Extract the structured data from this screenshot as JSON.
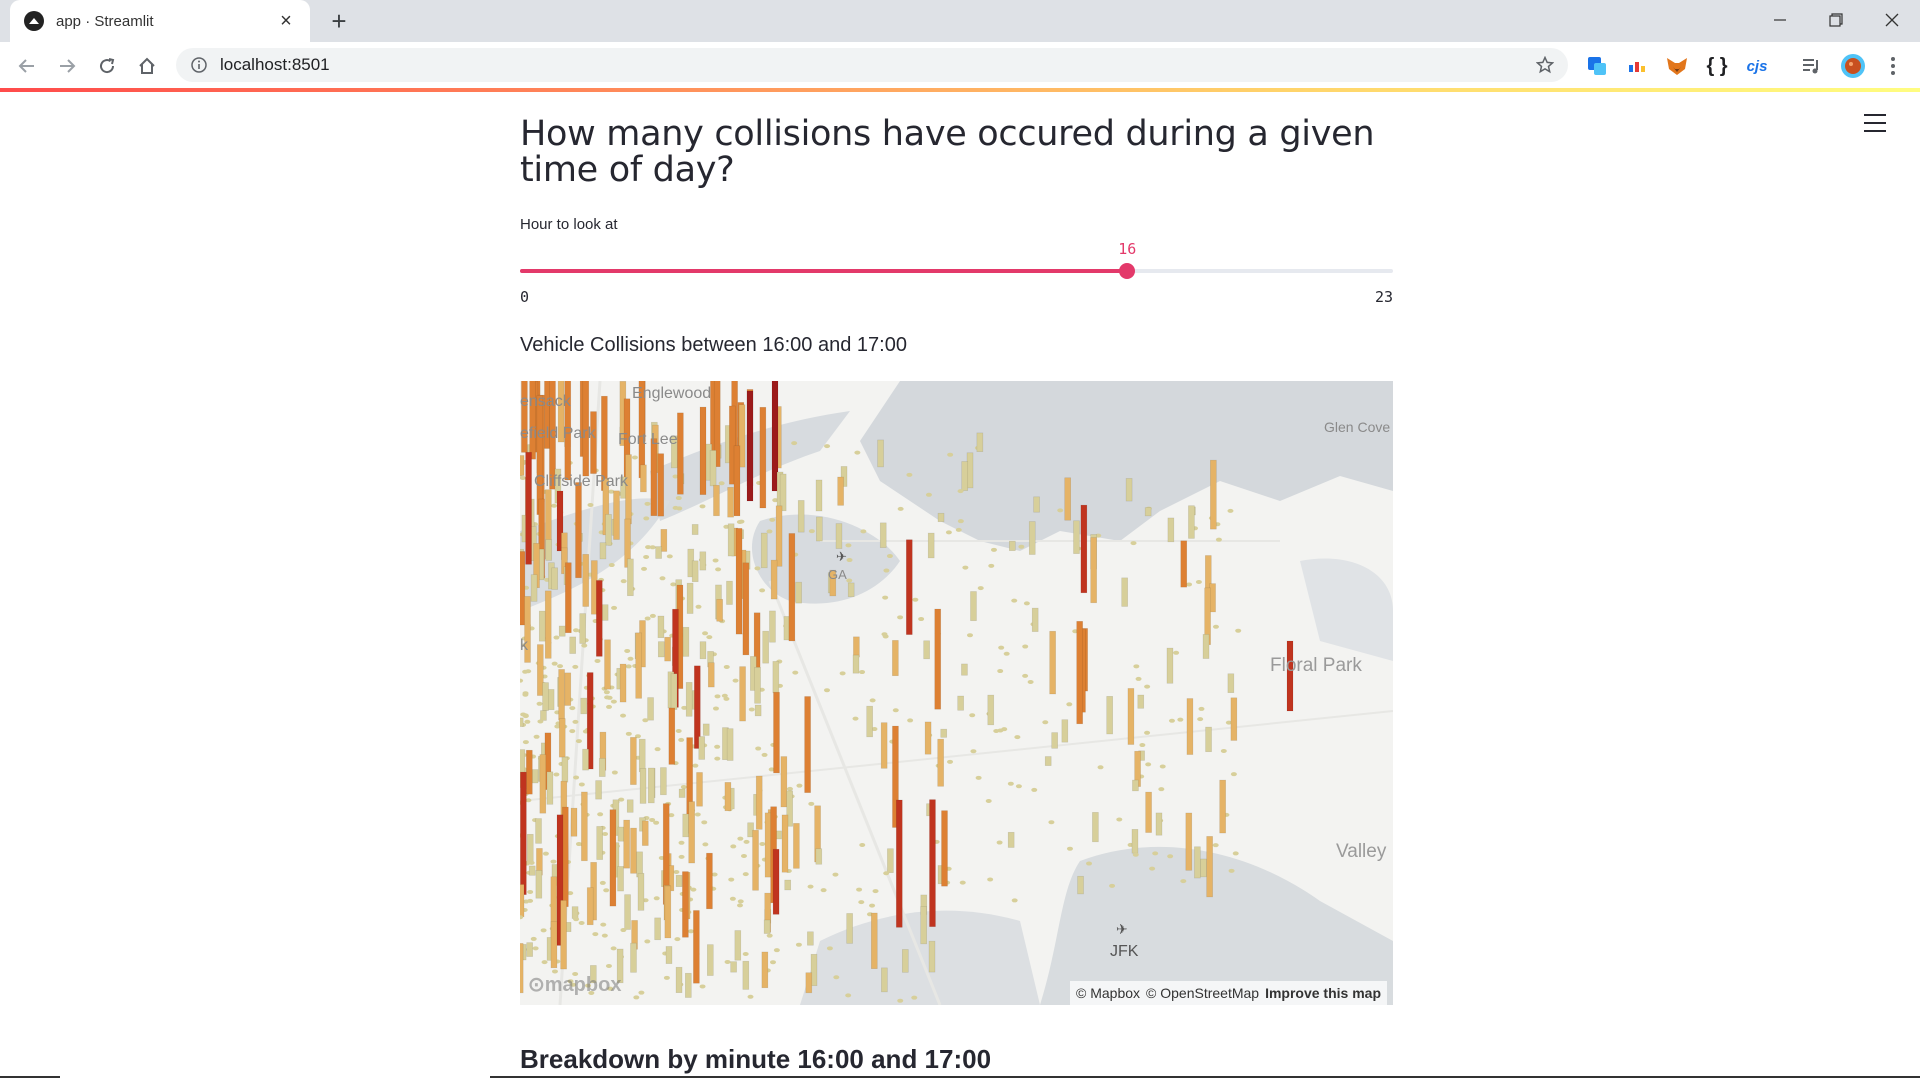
{
  "browser": {
    "tab_title": "app · Streamlit",
    "url": "localhost:8501",
    "extensions": [
      "translate-icon",
      "color-picker-icon",
      "metamask-fox-icon",
      "json-braces-icon",
      "cjs-icon",
      "media-control-icon",
      "profile-avatar-icon",
      "menu-dots-icon"
    ],
    "ext_labels": {
      "json": "{ }",
      "cjs": "cjs"
    }
  },
  "page": {
    "heading": "How many collisions have occured during a given time of day?",
    "slider": {
      "label": "Hour to look at",
      "value": 16,
      "min": 0,
      "max": 23,
      "value_label": "16",
      "min_label": "0",
      "max_label": "23",
      "accent": "#e3396a"
    },
    "map_title": "Vehicle Collisions between 16:00 and 17:00",
    "map": {
      "places": {
        "p1": "ensack",
        "p2": "Englewood",
        "p3": "efield Park",
        "p4": "Fort Lee",
        "p5": "Cliffside Park",
        "p6": "Glen Cove",
        "p7": "Floral Park",
        "p8": "Valley",
        "p9": "JFK",
        "p10": "k",
        "p11": "GA"
      },
      "logo": "mapbox",
      "attribution_mapbox": "© Mapbox",
      "attribution_osm": "© OpenStreetMap",
      "improve_link": "Improve this map",
      "column_colors": [
        "#d7cf9a",
        "#e5b366",
        "#dd8033",
        "#c0341f",
        "#9c1b1b"
      ]
    },
    "breakdown_heading": "Breakdown by minute 16:00 and 17:00"
  }
}
